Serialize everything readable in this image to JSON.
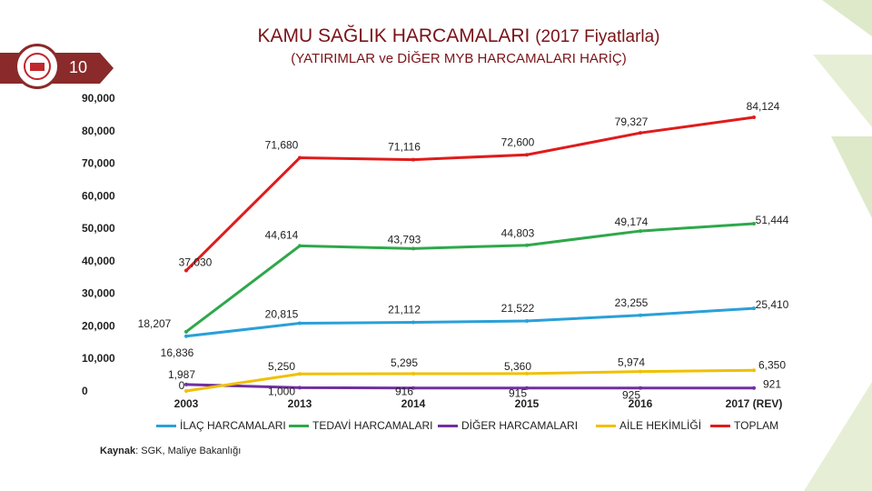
{
  "slide": {
    "number": "10",
    "title_main": "KAMU SAĞLIK HARCAMALARI",
    "title_sub": "(2017 Fiyatlarla)",
    "subtitle": "(YATIRIMLAR ve DİĞER MYB HARCAMALARI HARİÇ)",
    "source_label": "Kaynak",
    "source_text": ": SGK, Maliye Bakanlığı"
  },
  "colors": {
    "accent": "#8a2a2a",
    "title": "#7a1318",
    "deco": "#cfe0b4"
  },
  "chart_data": {
    "type": "line",
    "categories": [
      "2003",
      "2013",
      "2014",
      "2015",
      "2016",
      "2017 (REV)"
    ],
    "y_ticks": [
      "0",
      "10,000",
      "20,000",
      "30,000",
      "40,000",
      "50,000",
      "60,000",
      "70,000",
      "80,000",
      "90,000"
    ],
    "ylim": [
      0,
      90000
    ],
    "grid": false,
    "legend_position": "bottom",
    "series": [
      {
        "name": "İLAÇ HARCAMALARI",
        "color": "#2aa0d8",
        "values": [
          16836,
          20815,
          21112,
          21522,
          23255,
          25410
        ],
        "labels": [
          "16,836",
          "20,815",
          "21,112",
          "21,522",
          "23,255",
          "25,410"
        ]
      },
      {
        "name": "TEDAVİ HARCAMALARI",
        "color": "#2ea84a",
        "values": [
          18207,
          44614,
          43793,
          44803,
          49174,
          51444
        ],
        "labels": [
          "18,207",
          "44,614",
          "43,793",
          "44,803",
          "49,174",
          "51,444"
        ]
      },
      {
        "name": "DİĞER HARCAMALARI",
        "color": "#7030a0",
        "values": [
          1987,
          1000,
          916,
          915,
          925,
          921
        ],
        "labels": [
          "1,987",
          "1,000",
          "916",
          "915",
          "925",
          "921"
        ]
      },
      {
        "name": "AİLE HEKİMLİĞİ",
        "color": "#f0c000",
        "values": [
          0,
          5250,
          5295,
          5360,
          5974,
          6350
        ],
        "labels": [
          "0",
          "5,250",
          "5,295",
          "5,360",
          "5,974",
          "6,350"
        ]
      },
      {
        "name": "TOPLAM",
        "color": "#e01b1b",
        "values": [
          37030,
          71680,
          71116,
          72600,
          79327,
          84124
        ],
        "labels": [
          "37,030",
          "71,680",
          "71,116",
          "72,600",
          "79,327",
          "84,124"
        ]
      }
    ]
  }
}
